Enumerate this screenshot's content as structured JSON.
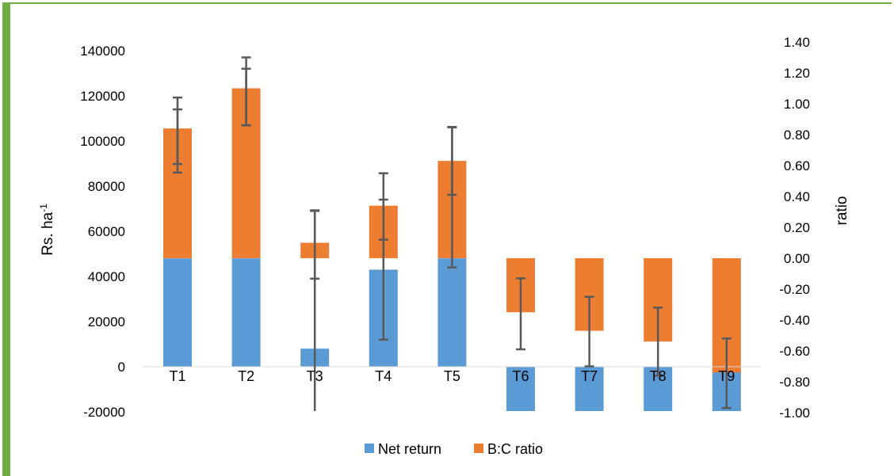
{
  "chart_data": {
    "type": "bar",
    "categories": [
      "T1",
      "T2",
      "T3",
      "T4",
      "T5",
      "T6",
      "T7",
      "T8",
      "T9"
    ],
    "series": [
      {
        "name": "Net return",
        "axis": "left",
        "values": [
          48000,
          48000,
          8000,
          43000,
          48000,
          -21000,
          -21000,
          -21000,
          -21000
        ],
        "error_low": [
          86000,
          107000,
          39000,
          12000,
          44000,
          null,
          null,
          null,
          null
        ],
        "error_high": [
          114000,
          132000,
          69000,
          74000,
          106000,
          null,
          null,
          null,
          null
        ],
        "color": "#5b9bd5"
      },
      {
        "name": "B:C ratio",
        "axis": "right",
        "values": [
          0.84,
          1.1,
          0.1,
          0.34,
          0.63,
          -0.35,
          -0.47,
          -0.54,
          -0.74
        ],
        "error_low": [
          0.61,
          0.86,
          -1.0,
          0.12,
          0.41,
          -0.59,
          -0.7,
          -0.76,
          -0.97
        ],
        "error_high": [
          1.04,
          1.3,
          0.31,
          0.55,
          0.85,
          -0.13,
          -0.25,
          -0.32,
          -0.52
        ],
        "color": "#ed7d31"
      }
    ],
    "y_left": {
      "label": "Rs. ha",
      "label_sup": "-1",
      "ticks": [
        "140000",
        "120000",
        "100000",
        "80000",
        "60000",
        "40000",
        "20000",
        "0",
        "-20000"
      ],
      "ylim": [
        -20000,
        140000
      ]
    },
    "y_right": {
      "label": "ratio",
      "ticks": [
        "1.40",
        "1.20",
        "1.00",
        "0.80",
        "0.60",
        "0.40",
        "0.20",
        "0.00",
        "-0.20",
        "-0.40",
        "-0.60",
        "-0.80",
        "-1.00"
      ],
      "ylim": [
        -1.0,
        1.4
      ]
    },
    "legend": {
      "placement": "bottom",
      "items": [
        "Net return",
        "B:C ratio"
      ]
    },
    "grid": false
  }
}
